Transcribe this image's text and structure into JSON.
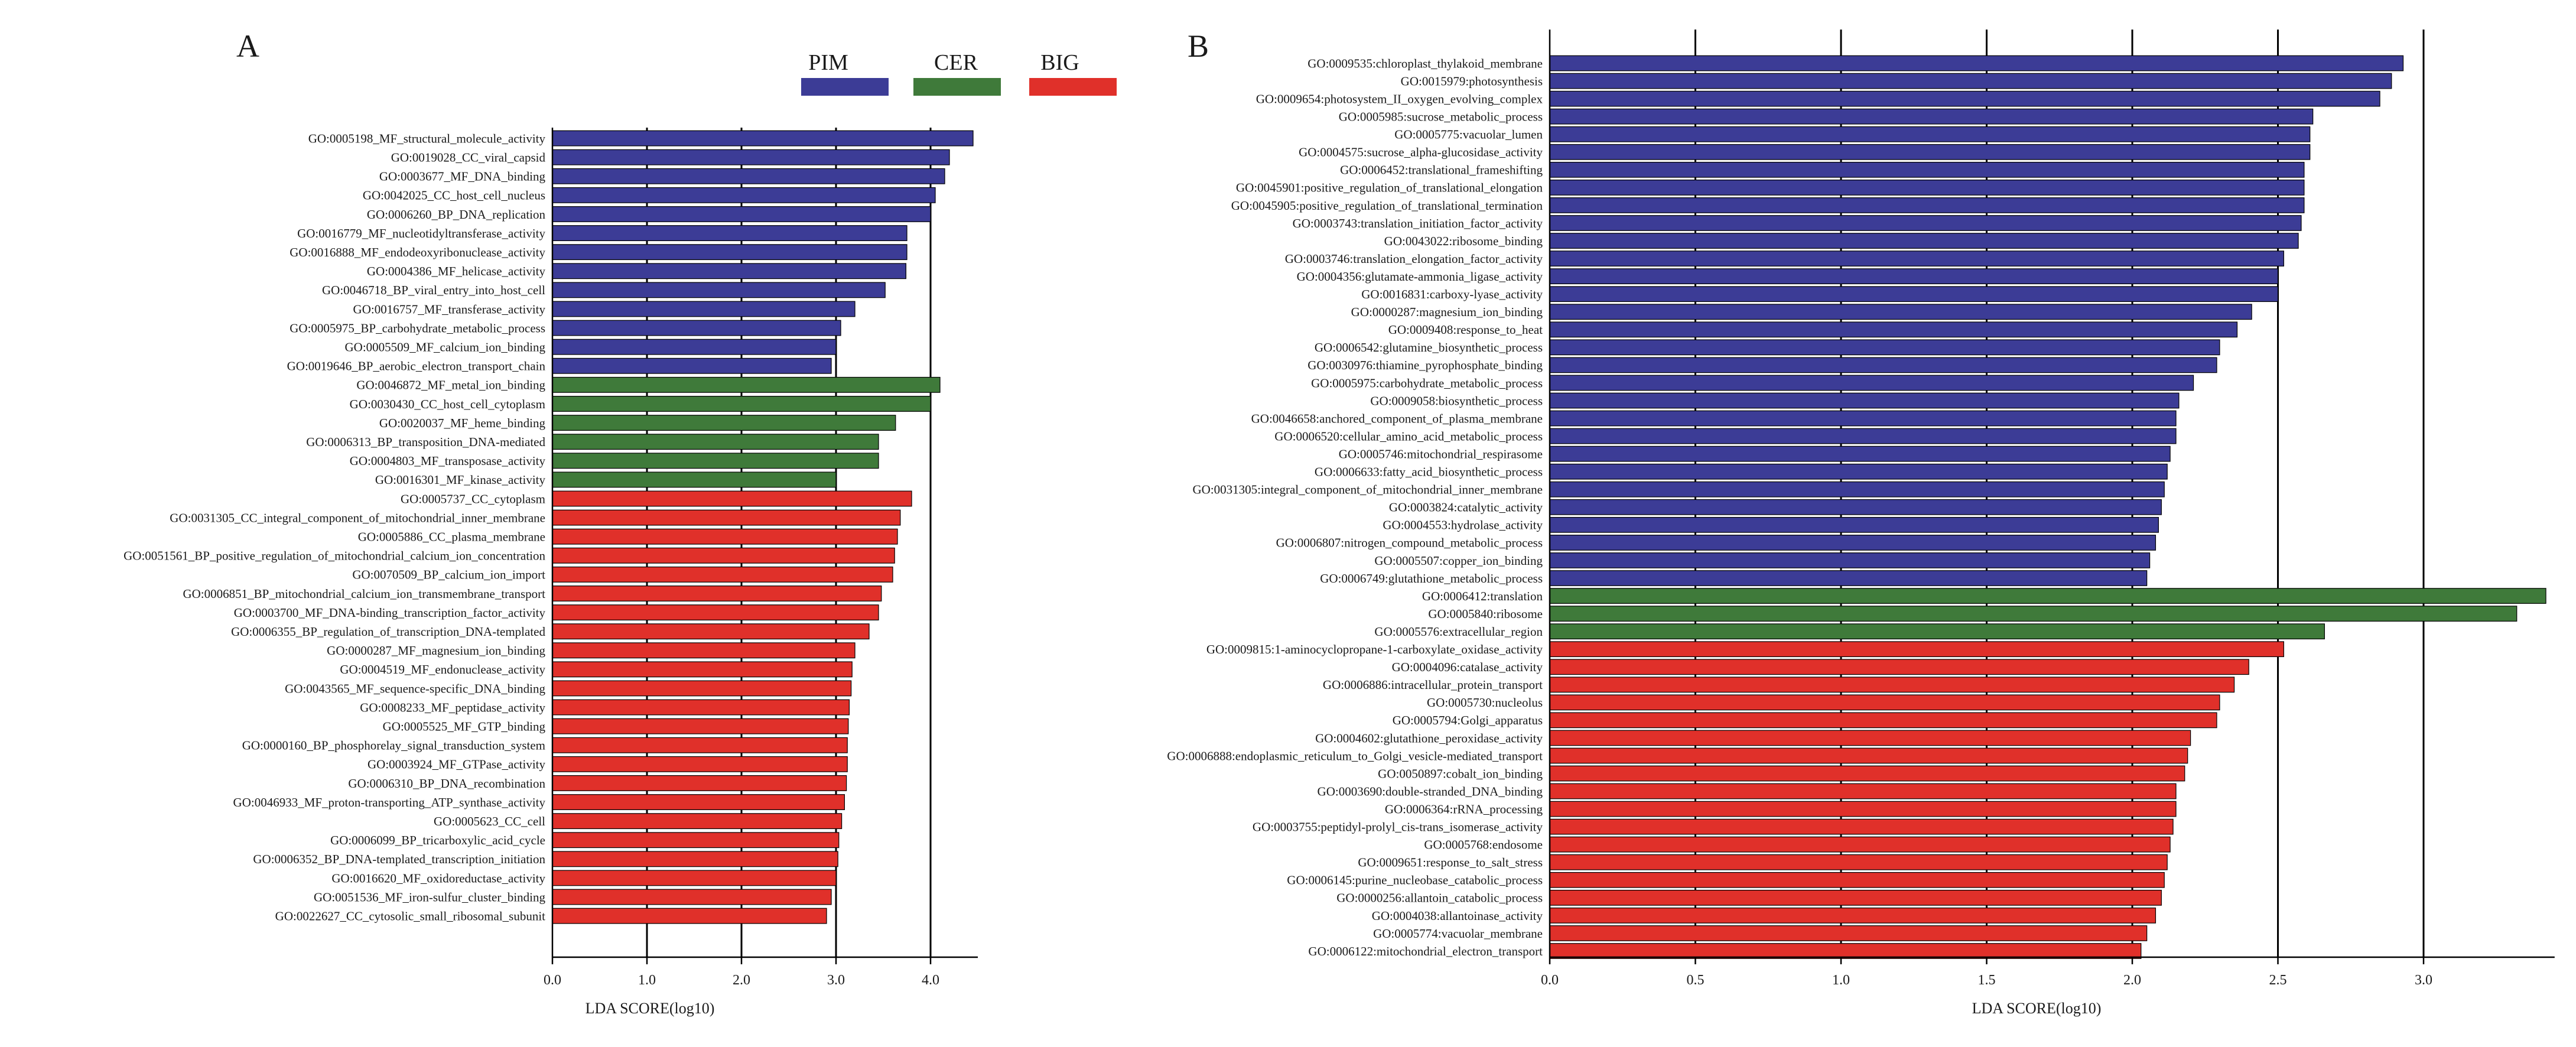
{
  "legend": [
    {
      "label": "PIM",
      "color": "#3c3c96"
    },
    {
      "label": "CER",
      "color": "#3f7a3a"
    },
    {
      "label": "BIG",
      "color": "#e0302a"
    }
  ],
  "chart_data": [
    {
      "type": "bar",
      "orientation": "horizontal",
      "panel_label": "A",
      "xlabel": "LDA SCORE(log10)",
      "xlim": [
        0,
        4.5
      ],
      "xticks": [
        0,
        1,
        2,
        3,
        4
      ],
      "xtick_labels": [
        "0.0",
        "1.0",
        "2.0",
        "3.0",
        "4.0"
      ],
      "grid": true,
      "series": [
        {
          "name": "PIM",
          "color": "#3c3c96",
          "categories": [
            "GO:0005198_MF_structural_molecule_activity",
            "GO:0019028_CC_viral_capsid",
            "GO:0003677_MF_DNA_binding",
            "GO:0042025_CC_host_cell_nucleus",
            "GO:0006260_BP_DNA_replication",
            "GO:0016779_MF_nucleotidyltransferase_activity",
            "GO:0016888_MF_endodeoxyribonuclease_activity",
            "GO:0004386_MF_helicase_activity",
            "GO:0046718_BP_viral_entry_into_host_cell",
            "GO:0016757_MF_transferase_activity",
            "GO:0005975_BP_carbohydrate_metabolic_process",
            "GO:0005509_MF_calcium_ion_binding",
            "GO:0019646_BP_aerobic_electron_transport_chain"
          ],
          "values": [
            4.45,
            4.2,
            4.15,
            4.05,
            4.0,
            3.75,
            3.75,
            3.74,
            3.52,
            3.2,
            3.05,
            3.0,
            2.95
          ]
        },
        {
          "name": "CER",
          "color": "#3f7a3a",
          "categories": [
            "GO:0046872_MF_metal_ion_binding",
            "GO:0030430_CC_host_cell_cytoplasm",
            "GO:0020037_MF_heme_binding",
            "GO:0006313_BP_transposition_DNA-mediated",
            "GO:0004803_MF_transposase_activity",
            "GO:0016301_MF_kinase_activity"
          ],
          "values": [
            4.1,
            4.0,
            3.63,
            3.45,
            3.45,
            3.0
          ]
        },
        {
          "name": "BIG",
          "color": "#e0302a",
          "categories": [
            "GO:0005737_CC_cytoplasm",
            "GO:0031305_CC_integral_component_of_mitochondrial_inner_membrane",
            "GO:0005886_CC_plasma_membrane",
            "GO:0051561_BP_positive_regulation_of_mitochondrial_calcium_ion_concentration",
            "GO:0070509_BP_calcium_ion_import",
            "GO:0006851_BP_mitochondrial_calcium_ion_transmembrane_transport",
            "GO:0003700_MF_DNA-binding_transcription_factor_activity",
            "GO:0006355_BP_regulation_of_transcription_DNA-templated",
            "GO:0000287_MF_magnesium_ion_binding",
            "GO:0004519_MF_endonuclease_activity",
            "GO:0043565_MF_sequence-specific_DNA_binding",
            "GO:0008233_MF_peptidase_activity",
            "GO:0005525_MF_GTP_binding",
            "GO:0000160_BP_phosphorelay_signal_transduction_system",
            "GO:0003924_MF_GTPase_activity",
            "GO:0006310_BP_DNA_recombination",
            "GO:0046933_MF_proton-transporting_ATP_synthase_activity",
            "GO:0005623_CC_cell",
            "GO:0006099_BP_tricarboxylic_acid_cycle",
            "GO:0006352_BP_DNA-templated_transcription_initiation",
            "GO:0016620_MF_oxidoreductase_activity",
            "GO:0051536_MF_iron-sulfur_cluster_binding",
            "GO:0022627_CC_cytosolic_small_ribosomal_subunit"
          ],
          "values": [
            3.8,
            3.68,
            3.65,
            3.62,
            3.6,
            3.48,
            3.45,
            3.35,
            3.2,
            3.17,
            3.16,
            3.14,
            3.13,
            3.12,
            3.12,
            3.11,
            3.09,
            3.06,
            3.03,
            3.02,
            3.0,
            2.95,
            2.9
          ]
        }
      ]
    },
    {
      "type": "bar",
      "orientation": "horizontal",
      "panel_label": "B",
      "xlabel": "LDA SCORE(log10)",
      "xlim": [
        0,
        3.45
      ],
      "xticks": [
        0,
        0.5,
        1.0,
        1.5,
        2.0,
        2.5,
        3.0
      ],
      "xtick_labels": [
        "0.0",
        "0.5",
        "1.0",
        "1.5",
        "2.0",
        "2.5",
        "3.0"
      ],
      "grid": true,
      "series": [
        {
          "name": "PIM",
          "color": "#3c3c96",
          "categories": [
            "GO:0009535:chloroplast_thylakoid_membrane",
            "GO:0015979:photosynthesis",
            "GO:0009654:photosystem_II_oxygen_evolving_complex",
            "GO:0005985:sucrose_metabolic_process",
            "GO:0005775:vacuolar_lumen",
            "GO:0004575:sucrose_alpha-glucosidase_activity",
            "GO:0006452:translational_frameshifting",
            "GO:0045901:positive_regulation_of_translational_elongation",
            "GO:0045905:positive_regulation_of_translational_termination",
            "GO:0003743:translation_initiation_factor_activity",
            "GO:0043022:ribosome_binding",
            "GO:0003746:translation_elongation_factor_activity",
            "GO:0004356:glutamate-ammonia_ligase_activity",
            "GO:0016831:carboxy-lyase_activity",
            "GO:0000287:magnesium_ion_binding",
            "GO:0009408:response_to_heat",
            "GO:0006542:glutamine_biosynthetic_process",
            "GO:0030976:thiamine_pyrophosphate_binding",
            "GO:0005975:carbohydrate_metabolic_process",
            "GO:0009058:biosynthetic_process",
            "GO:0046658:anchored_component_of_plasma_membrane",
            "GO:0006520:cellular_amino_acid_metabolic_process",
            "GO:0005746:mitochondrial_respirasome",
            "GO:0006633:fatty_acid_biosynthetic_process",
            "GO:0031305:integral_component_of_mitochondrial_inner_membrane",
            "GO:0003824:catalytic_activity",
            "GO:0004553:hydrolase_activity",
            "GO:0006807:nitrogen_compound_metabolic_process",
            "GO:0005507:copper_ion_binding",
            "GO:0006749:glutathione_metabolic_process"
          ],
          "values": [
            2.93,
            2.89,
            2.85,
            2.62,
            2.61,
            2.61,
            2.59,
            2.59,
            2.59,
            2.58,
            2.57,
            2.52,
            2.5,
            2.5,
            2.41,
            2.36,
            2.3,
            2.29,
            2.21,
            2.16,
            2.15,
            2.15,
            2.13,
            2.12,
            2.11,
            2.1,
            2.09,
            2.08,
            2.06,
            2.05
          ]
        },
        {
          "name": "CER",
          "color": "#3f7a3a",
          "categories": [
            "GO:0006412:translation",
            "GO:0005840:ribosome",
            "GO:0005576:extracellular_region"
          ],
          "values": [
            3.42,
            3.32,
            2.66
          ]
        },
        {
          "name": "BIG",
          "color": "#e0302a",
          "categories": [
            "GO:0009815:1-aminocyclopropane-1-carboxylate_oxidase_activity",
            "GO:0004096:catalase_activity",
            "GO:0006886:intracellular_protein_transport",
            "GO:0005730:nucleolus",
            "GO:0005794:Golgi_apparatus",
            "GO:0004602:glutathione_peroxidase_activity",
            "GO:0006888:endoplasmic_reticulum_to_Golgi_vesicle-mediated_transport",
            "GO:0050897:cobalt_ion_binding",
            "GO:0003690:double-stranded_DNA_binding",
            "GO:0006364:rRNA_processing",
            "GO:0003755:peptidyl-prolyl_cis-trans_isomerase_activity",
            "GO:0005768:endosome",
            "GO:0009651:response_to_salt_stress",
            "GO:0006145:purine_nucleobase_catabolic_process",
            "GO:0000256:allantoin_catabolic_process",
            "GO:0004038:allantoinase_activity",
            "GO:0005774:vacuolar_membrane",
            "GO:0006122:mitochondrial_electron_transport"
          ],
          "values": [
            2.52,
            2.4,
            2.35,
            2.3,
            2.29,
            2.2,
            2.19,
            2.18,
            2.15,
            2.15,
            2.14,
            2.13,
            2.12,
            2.11,
            2.1,
            2.08,
            2.05,
            2.03
          ]
        }
      ]
    }
  ]
}
